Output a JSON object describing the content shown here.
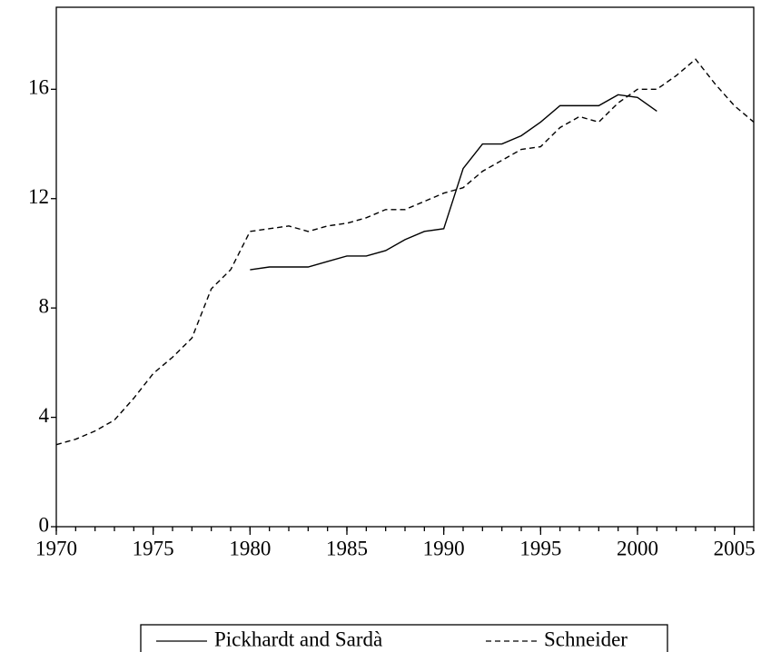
{
  "chart_data": {
    "type": "line",
    "x": [
      1970,
      1971,
      1972,
      1973,
      1974,
      1975,
      1976,
      1977,
      1978,
      1979,
      1980,
      1981,
      1982,
      1983,
      1984,
      1985,
      1986,
      1987,
      1988,
      1989,
      1990,
      1991,
      1992,
      1993,
      1994,
      1995,
      1996,
      1997,
      1998,
      1999,
      2000,
      2001,
      2002,
      2003,
      2004,
      2005,
      2006
    ],
    "series": [
      {
        "name": "Pickhardt and Sardà",
        "color": "#000000",
        "style": "solid",
        "values": [
          null,
          null,
          null,
          null,
          null,
          null,
          null,
          null,
          null,
          null,
          9.4,
          9.5,
          9.5,
          9.5,
          9.7,
          9.9,
          9.9,
          10.1,
          10.5,
          10.8,
          10.9,
          13.1,
          14.0,
          14.0,
          14.3,
          14.8,
          15.4,
          15.4,
          15.4,
          15.8,
          15.7,
          15.2,
          null,
          null,
          null,
          null,
          null
        ]
      },
      {
        "name": "Schneider",
        "color": "#000000",
        "style": "dashed",
        "values": [
          3.0,
          3.2,
          3.5,
          3.9,
          4.7,
          5.6,
          6.2,
          6.9,
          8.7,
          9.4,
          10.8,
          10.9,
          11.0,
          10.8,
          11.0,
          11.1,
          11.3,
          11.6,
          11.6,
          11.9,
          12.2,
          12.4,
          13.0,
          13.4,
          13.8,
          13.9,
          14.6,
          15.0,
          14.8,
          15.5,
          16.0,
          16.0,
          16.5,
          17.1,
          16.2,
          15.4,
          14.8
        ]
      }
    ],
    "xlim": [
      1970,
      2006
    ],
    "xticks": [
      1970,
      1975,
      1980,
      1985,
      1990,
      1995,
      2000,
      2005
    ],
    "ylim": [
      0,
      19
    ],
    "yticks": [
      0,
      4,
      8,
      12,
      16
    ],
    "legend": "bottom"
  }
}
